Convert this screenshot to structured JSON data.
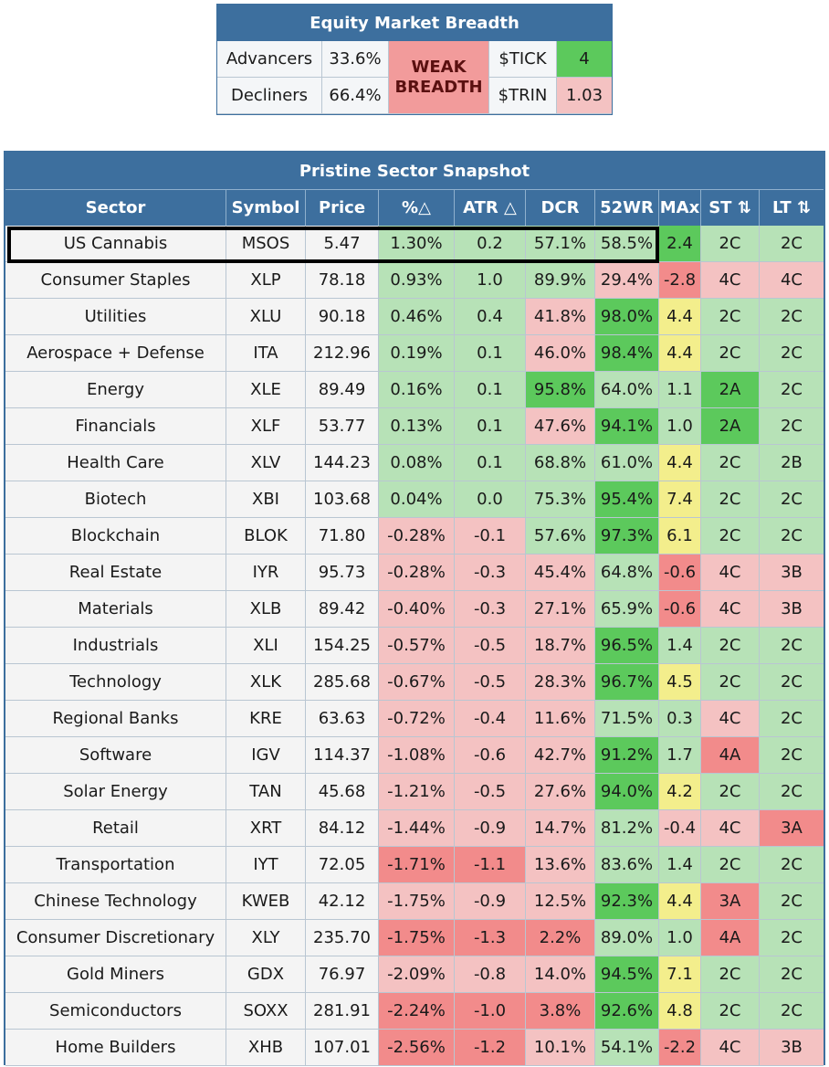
{
  "breadth": {
    "title": "Equity Market Breadth",
    "advancers_label": "Advancers",
    "advancers_value": "33.6%",
    "decliners_label": "Decliners",
    "decliners_value": "66.4%",
    "status_line1": "WEAK",
    "status_line2": "BREADTH",
    "tick_label": "$TICK",
    "tick_value": "4",
    "trin_label": "$TRIN",
    "trin_value": "1.03"
  },
  "sector_table": {
    "title": "Pristine Sector Snapshot",
    "headers": [
      "Sector",
      "Symbol",
      "Price",
      "%△",
      "ATR △",
      "DCR",
      "52WR",
      "MAx",
      "ST ⇅",
      "LT ⇅"
    ],
    "rows": [
      [
        "US Cannabis",
        "MSOS",
        "5.47",
        "1.30%",
        "0.2",
        "57.1%",
        "58.5%",
        "2.4",
        "2C",
        "2C"
      ],
      [
        "Consumer Staples",
        "XLP",
        "78.18",
        "0.93%",
        "1.0",
        "89.9%",
        "29.4%",
        "-2.8",
        "4C",
        "4C"
      ],
      [
        "Utilities",
        "XLU",
        "90.18",
        "0.46%",
        "0.4",
        "41.8%",
        "98.0%",
        "4.4",
        "2C",
        "2C"
      ],
      [
        "Aerospace + Defense",
        "ITA",
        "212.96",
        "0.19%",
        "0.1",
        "46.0%",
        "98.4%",
        "4.4",
        "2C",
        "2C"
      ],
      [
        "Energy",
        "XLE",
        "89.49",
        "0.16%",
        "0.1",
        "95.8%",
        "64.0%",
        "1.1",
        "2A",
        "2C"
      ],
      [
        "Financials",
        "XLF",
        "53.77",
        "0.13%",
        "0.1",
        "47.6%",
        "94.1%",
        "1.0",
        "2A",
        "2C"
      ],
      [
        "Health Care",
        "XLV",
        "144.23",
        "0.08%",
        "0.1",
        "68.8%",
        "61.0%",
        "4.4",
        "2C",
        "2B"
      ],
      [
        "Biotech",
        "XBI",
        "103.68",
        "0.04%",
        "0.0",
        "75.3%",
        "95.4%",
        "7.4",
        "2C",
        "2C"
      ],
      [
        "Blockchain",
        "BLOK",
        "71.80",
        "-0.28%",
        "-0.1",
        "57.6%",
        "97.3%",
        "6.1",
        "2C",
        "2C"
      ],
      [
        "Real Estate",
        "IYR",
        "95.73",
        "-0.28%",
        "-0.3",
        "45.4%",
        "64.8%",
        "-0.6",
        "4C",
        "3B"
      ],
      [
        "Materials",
        "XLB",
        "89.42",
        "-0.40%",
        "-0.3",
        "27.1%",
        "65.9%",
        "-0.6",
        "4C",
        "3B"
      ],
      [
        "Industrials",
        "XLI",
        "154.25",
        "-0.57%",
        "-0.5",
        "18.7%",
        "96.5%",
        "1.4",
        "2C",
        "2C"
      ],
      [
        "Technology",
        "XLK",
        "285.68",
        "-0.67%",
        "-0.5",
        "28.3%",
        "96.7%",
        "4.5",
        "2C",
        "2C"
      ],
      [
        "Regional Banks",
        "KRE",
        "63.63",
        "-0.72%",
        "-0.4",
        "11.6%",
        "71.5%",
        "0.3",
        "4C",
        "2C"
      ],
      [
        "Software",
        "IGV",
        "114.37",
        "-1.08%",
        "-0.6",
        "42.7%",
        "91.2%",
        "1.7",
        "4A",
        "2C"
      ],
      [
        "Solar Energy",
        "TAN",
        "45.68",
        "-1.21%",
        "-0.5",
        "27.6%",
        "94.0%",
        "4.2",
        "2C",
        "2C"
      ],
      [
        "Retail",
        "XRT",
        "84.12",
        "-1.44%",
        "-0.9",
        "14.7%",
        "81.2%",
        "-0.4",
        "4C",
        "3A"
      ],
      [
        "Transportation",
        "IYT",
        "72.05",
        "-1.71%",
        "-1.1",
        "13.6%",
        "83.6%",
        "1.4",
        "2C",
        "2C"
      ],
      [
        "Chinese Technology",
        "KWEB",
        "42.12",
        "-1.75%",
        "-0.9",
        "12.5%",
        "92.3%",
        "4.4",
        "3A",
        "2C"
      ],
      [
        "Consumer Discretionary",
        "XLY",
        "235.70",
        "-1.75%",
        "-1.3",
        "2.2%",
        "89.0%",
        "1.0",
        "4A",
        "2C"
      ],
      [
        "Gold Miners",
        "GDX",
        "76.97",
        "-2.09%",
        "-0.8",
        "14.0%",
        "94.5%",
        "7.1",
        "2C",
        "2C"
      ],
      [
        "Semiconductors",
        "SOXX",
        "281.91",
        "-2.24%",
        "-1.0",
        "3.8%",
        "92.6%",
        "4.8",
        "2C",
        "2C"
      ],
      [
        "Home Builders",
        "XHB",
        "107.01",
        "-2.56%",
        "-1.2",
        "10.1%",
        "54.1%",
        "-2.2",
        "4C",
        "3B"
      ]
    ],
    "row_colors": [
      [
        "n",
        "n",
        "n",
        "lg",
        "lg",
        "lg",
        "lg",
        "g",
        "lg",
        "lg"
      ],
      [
        "n",
        "n",
        "n",
        "lg",
        "lg",
        "lg",
        "lr",
        "r",
        "lr",
        "lr"
      ],
      [
        "n",
        "n",
        "n",
        "lg",
        "lg",
        "lr",
        "g",
        "y",
        "lg",
        "lg"
      ],
      [
        "n",
        "n",
        "n",
        "lg",
        "lg",
        "lr",
        "g",
        "y",
        "lg",
        "lg"
      ],
      [
        "n",
        "n",
        "n",
        "lg",
        "lg",
        "g",
        "lg",
        "lg",
        "g",
        "lg"
      ],
      [
        "n",
        "n",
        "n",
        "lg",
        "lg",
        "lr",
        "g",
        "lg",
        "g",
        "lg"
      ],
      [
        "n",
        "n",
        "n",
        "lg",
        "lg",
        "lg",
        "lg",
        "y",
        "lg",
        "lg"
      ],
      [
        "n",
        "n",
        "n",
        "lg",
        "lg",
        "lg",
        "g",
        "y",
        "lg",
        "lg"
      ],
      [
        "n",
        "n",
        "n",
        "lr",
        "lr",
        "lg",
        "g",
        "y",
        "lg",
        "lg"
      ],
      [
        "n",
        "n",
        "n",
        "lr",
        "lr",
        "lr",
        "lg",
        "r",
        "lr",
        "lr"
      ],
      [
        "n",
        "n",
        "n",
        "lr",
        "lr",
        "lr",
        "lg",
        "r",
        "lr",
        "lr"
      ],
      [
        "n",
        "n",
        "n",
        "lr",
        "lr",
        "lr",
        "g",
        "lg",
        "lg",
        "lg"
      ],
      [
        "n",
        "n",
        "n",
        "lr",
        "lr",
        "lr",
        "g",
        "y",
        "lg",
        "lg"
      ],
      [
        "n",
        "n",
        "n",
        "lr",
        "lr",
        "lr",
        "lg",
        "lg",
        "lr",
        "lg"
      ],
      [
        "n",
        "n",
        "n",
        "lr",
        "lr",
        "lr",
        "g",
        "lg",
        "r",
        "lg"
      ],
      [
        "n",
        "n",
        "n",
        "lr",
        "lr",
        "lr",
        "g",
        "y",
        "lg",
        "lg"
      ],
      [
        "n",
        "n",
        "n",
        "lr",
        "lr",
        "lr",
        "lg",
        "lr",
        "lr",
        "r"
      ],
      [
        "n",
        "n",
        "n",
        "r",
        "r",
        "lr",
        "lg",
        "lg",
        "lg",
        "lg"
      ],
      [
        "n",
        "n",
        "n",
        "lr",
        "lr",
        "lr",
        "g",
        "y",
        "r",
        "lg"
      ],
      [
        "n",
        "n",
        "n",
        "r",
        "r",
        "r",
        "lg",
        "lg",
        "r",
        "lg"
      ],
      [
        "n",
        "n",
        "n",
        "lr",
        "lr",
        "lr",
        "g",
        "y",
        "lg",
        "lg"
      ],
      [
        "n",
        "n",
        "n",
        "r",
        "r",
        "r",
        "g",
        "y",
        "lg",
        "lg"
      ],
      [
        "n",
        "n",
        "n",
        "r",
        "r",
        "lr",
        "lg",
        "r",
        "lr",
        "lr"
      ]
    ]
  }
}
